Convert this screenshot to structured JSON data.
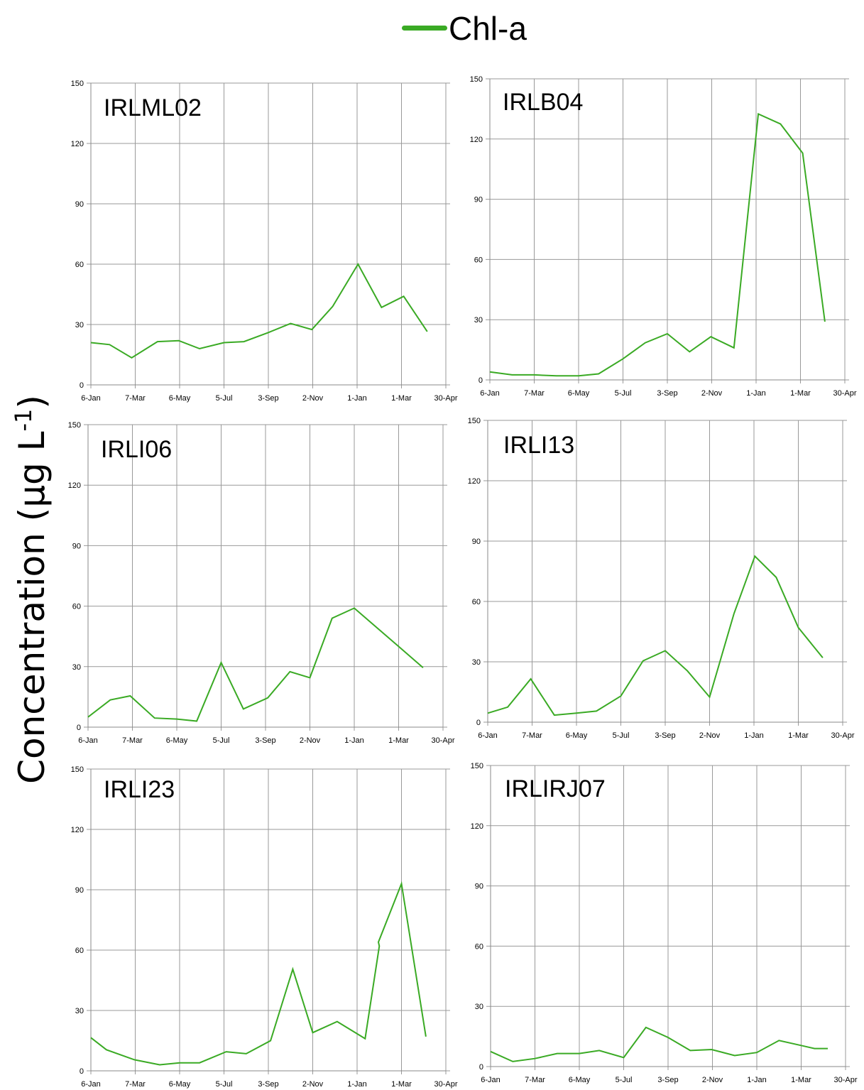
{
  "legend": {
    "label": "Chl-a",
    "color": "#3aaa24"
  },
  "y_axis_label": "Concentration (µg L-1)",
  "y_axis_label_parts": {
    "main": "Concentration (µg L",
    "sup": "-1",
    "close": ")"
  },
  "colors": {
    "grid": "#999999",
    "line": "#3aaa24"
  },
  "chart_data": [
    {
      "type": "line",
      "title": "IRLML02",
      "x_ticks": [
        "6-Jan",
        "7-Mar",
        "6-May",
        "5-Jul",
        "3-Sep",
        "2-Nov",
        "1-Jan",
        "1-Mar",
        "30-Apr"
      ],
      "y_ticks": [
        0,
        30,
        60,
        90,
        120,
        150
      ],
      "ylim": [
        0,
        150
      ],
      "series": [
        {
          "values": [
            [
              0,
              21
            ],
            [
              0.42,
              20
            ],
            [
              0.92,
              13.5
            ],
            [
              1.5,
              21.5
            ],
            [
              1.98,
              22
            ],
            [
              2.45,
              18
            ],
            [
              3.0,
              21
            ],
            [
              3.45,
              21.5
            ],
            [
              4.0,
              26
            ],
            [
              4.5,
              30.5
            ],
            [
              4.98,
              27.5
            ],
            [
              5.45,
              39
            ],
            [
              6.02,
              60
            ],
            [
              6.55,
              38.5
            ],
            [
              7.05,
              44
            ],
            [
              7.58,
              26.5
            ]
          ]
        }
      ]
    },
    {
      "type": "line",
      "title": "IRLB04",
      "x_ticks": [
        "6-Jan",
        "7-Mar",
        "6-May",
        "5-Jul",
        "3-Sep",
        "2-Nov",
        "1-Jan",
        "1-Mar",
        "30-Apr"
      ],
      "y_ticks": [
        0,
        30,
        60,
        90,
        120,
        150
      ],
      "ylim": [
        0,
        150
      ],
      "series": [
        {
          "values": [
            [
              0,
              4
            ],
            [
              0.5,
              2.5
            ],
            [
              1.0,
              2.5
            ],
            [
              1.5,
              2
            ],
            [
              2.0,
              2
            ],
            [
              2.45,
              3
            ],
            [
              3.0,
              10.5
            ],
            [
              3.5,
              18.5
            ],
            [
              4.0,
              23
            ],
            [
              4.5,
              14
            ],
            [
              4.98,
              21.5
            ],
            [
              5.5,
              16
            ],
            [
              6.05,
              132.5
            ],
            [
              6.55,
              127.5
            ],
            [
              7.05,
              113
            ],
            [
              7.55,
              29
            ]
          ]
        }
      ]
    },
    {
      "type": "line",
      "title": "IRLI06",
      "x_ticks": [
        "6-Jan",
        "7-Mar",
        "6-May",
        "5-Jul",
        "3-Sep",
        "2-Nov",
        "1-Jan",
        "1-Mar",
        "30-Apr"
      ],
      "y_ticks": [
        0,
        30,
        60,
        90,
        120,
        150
      ],
      "ylim": [
        0,
        150
      ],
      "series": [
        {
          "values": [
            [
              0,
              5
            ],
            [
              0.5,
              13.5
            ],
            [
              0.95,
              15.5
            ],
            [
              1.5,
              4.5
            ],
            [
              2.0,
              4
            ],
            [
              2.45,
              3
            ],
            [
              3.0,
              32
            ],
            [
              3.5,
              9
            ],
            [
              4.05,
              14.5
            ],
            [
              4.55,
              27.5
            ],
            [
              5.0,
              24.5
            ],
            [
              5.5,
              54
            ],
            [
              6.0,
              59
            ],
            [
              7.0,
              40
            ],
            [
              7.55,
              29.5
            ]
          ]
        }
      ]
    },
    {
      "type": "line",
      "title": "IRLI13",
      "x_ticks": [
        "6-Jan",
        "7-Mar",
        "6-May",
        "5-Jul",
        "3-Sep",
        "2-Nov",
        "1-Jan",
        "1-Mar",
        "30-Apr"
      ],
      "y_ticks": [
        0,
        30,
        60,
        90,
        120,
        150
      ],
      "ylim": [
        0,
        150
      ],
      "series": [
        {
          "values": [
            [
              0,
              4.5
            ],
            [
              0.45,
              7.5
            ],
            [
              0.97,
              21.5
            ],
            [
              1.5,
              3.5
            ],
            [
              2.0,
              4.5
            ],
            [
              2.45,
              5.5
            ],
            [
              3.0,
              13
            ],
            [
              3.5,
              30.5
            ],
            [
              4.0,
              35.5
            ],
            [
              4.5,
              25.5
            ],
            [
              5.0,
              12.5
            ],
            [
              5.55,
              54
            ],
            [
              6.02,
              82.5
            ],
            [
              6.5,
              72
            ],
            [
              7.0,
              47
            ],
            [
              7.55,
              32
            ]
          ]
        }
      ]
    },
    {
      "type": "line",
      "title": "IRLI23",
      "x_ticks": [
        "6-Jan",
        "7-Mar",
        "6-May",
        "5-Jul",
        "3-Sep",
        "2-Nov",
        "1-Jan",
        "1-Mar",
        "30-Apr"
      ],
      "y_ticks": [
        0,
        30,
        60,
        90,
        120,
        150
      ],
      "ylim": [
        0,
        150
      ],
      "series": [
        {
          "values": [
            [
              0,
              16.5
            ],
            [
              0.35,
              10.5
            ],
            [
              0.98,
              5.5
            ],
            [
              1.55,
              3
            ],
            [
              2.0,
              4
            ],
            [
              2.45,
              4
            ],
            [
              3.05,
              9.5
            ],
            [
              3.5,
              8.5
            ],
            [
              4.05,
              15
            ],
            [
              4.55,
              50.5
            ],
            [
              5.0,
              19
            ],
            [
              5.55,
              24.5
            ],
            [
              6.18,
              16
            ],
            [
              6.5,
              62
            ],
            [
              6.48,
              64
            ],
            [
              7.0,
              93
            ],
            [
              7.55,
              17
            ]
          ]
        }
      ]
    },
    {
      "type": "line",
      "title": "IRLIRJ07",
      "x_ticks": [
        "6-Jan",
        "7-Mar",
        "6-May",
        "5-Jul",
        "3-Sep",
        "2-Nov",
        "1-Jan",
        "1-Mar",
        "30-Apr"
      ],
      "y_ticks": [
        0,
        30,
        60,
        90,
        120,
        150
      ],
      "ylim": [
        0,
        150
      ],
      "series": [
        {
          "values": [
            [
              0,
              7.5
            ],
            [
              0.5,
              2.5
            ],
            [
              1.0,
              4
            ],
            [
              1.5,
              6.5
            ],
            [
              2.0,
              6.5
            ],
            [
              2.45,
              8
            ],
            [
              3.0,
              4.5
            ],
            [
              3.5,
              19.5
            ],
            [
              4.0,
              14.5
            ],
            [
              4.5,
              8
            ],
            [
              4.98,
              8.5
            ],
            [
              5.5,
              5.5
            ],
            [
              6.0,
              7
            ],
            [
              6.5,
              13
            ],
            [
              7.0,
              10.5
            ],
            [
              7.3,
              9
            ],
            [
              7.6,
              9
            ]
          ]
        }
      ]
    }
  ]
}
